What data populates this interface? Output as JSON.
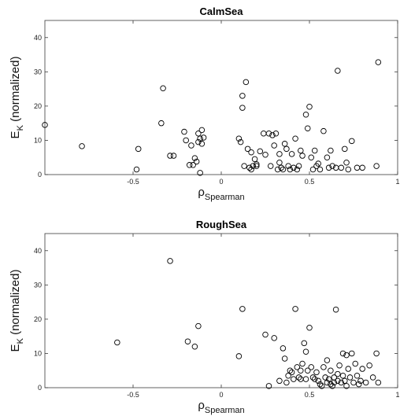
{
  "chart_data": [
    {
      "type": "scatter",
      "title": "CalmSea",
      "xlabel": {
        "main": "ρ",
        "sub": "Spearman"
      },
      "ylabel": {
        "main": "E",
        "sub": "K",
        "suffix": " (normalized)"
      },
      "xlim": [
        -1,
        1
      ],
      "ylim": [
        0,
        45
      ],
      "xticks": [
        -0.5,
        0,
        0.5,
        1
      ],
      "yticks": [
        0,
        10,
        20,
        30,
        40
      ],
      "xtick_labels": [
        "-0.5",
        "0",
        "0.5",
        "1"
      ],
      "ytick_labels": [
        "0",
        "10",
        "20",
        "30",
        "40"
      ],
      "grid": false,
      "marker": "open-circle",
      "x": [
        -1.0,
        -0.79,
        -0.48,
        -0.47,
        -0.34,
        -0.33,
        -0.29,
        -0.27,
        -0.21,
        -0.2,
        -0.18,
        -0.17,
        -0.16,
        -0.15,
        -0.14,
        -0.13,
        -0.13,
        -0.12,
        -0.12,
        -0.11,
        -0.11,
        -0.1,
        0.1,
        0.11,
        0.12,
        0.12,
        0.13,
        0.14,
        0.15,
        0.16,
        0.17,
        0.17,
        0.18,
        0.19,
        0.2,
        0.2,
        0.22,
        0.24,
        0.25,
        0.27,
        0.28,
        0.29,
        0.3,
        0.31,
        0.32,
        0.33,
        0.33,
        0.34,
        0.35,
        0.36,
        0.37,
        0.38,
        0.39,
        0.4,
        0.41,
        0.42,
        0.43,
        0.44,
        0.45,
        0.46,
        0.48,
        0.49,
        0.5,
        0.51,
        0.52,
        0.53,
        0.54,
        0.55,
        0.56,
        0.58,
        0.6,
        0.61,
        0.62,
        0.63,
        0.65,
        0.66,
        0.68,
        0.7,
        0.71,
        0.72,
        0.74,
        0.77,
        0.8,
        0.88,
        0.89
      ],
      "y": [
        14.5,
        8.3,
        1.5,
        7.5,
        15.0,
        25.2,
        5.5,
        5.5,
        12.5,
        10.0,
        2.8,
        8.5,
        2.8,
        4.8,
        3.8,
        12.0,
        9.5,
        10.5,
        0.5,
        13.0,
        9.0,
        10.8,
        10.5,
        9.5,
        23.0,
        19.5,
        2.5,
        27.0,
        7.5,
        2.0,
        1.5,
        6.5,
        2.5,
        4.5,
        3.0,
        2.5,
        6.8,
        12.0,
        5.8,
        12.0,
        2.5,
        11.5,
        8.5,
        12.0,
        1.5,
        6.0,
        3.5,
        2.0,
        1.5,
        9.0,
        7.5,
        2.5,
        1.5,
        6.0,
        2.0,
        10.5,
        1.5,
        2.5,
        7.0,
        5.5,
        17.5,
        13.5,
        19.8,
        5.0,
        1.5,
        7.0,
        2.5,
        3.2,
        1.5,
        12.7,
        5.0,
        2.0,
        7.0,
        2.5,
        2.0,
        30.3,
        2.0,
        7.5,
        3.5,
        1.5,
        9.8,
        2.0,
        2.0,
        2.5,
        32.8
      ]
    },
    {
      "type": "scatter",
      "title": "RoughSea",
      "xlabel": {
        "main": "ρ",
        "sub": "Spearman"
      },
      "ylabel": {
        "main": "E",
        "sub": "K",
        "suffix": " (normalized)"
      },
      "xlim": [
        -1,
        1
      ],
      "ylim": [
        0,
        45
      ],
      "xticks": [
        -0.5,
        0,
        0.5,
        1
      ],
      "yticks": [
        0,
        10,
        20,
        30,
        40
      ],
      "xtick_labels": [
        "-0.5",
        "0",
        "0.5",
        "1"
      ],
      "ytick_labels": [
        "0",
        "10",
        "20",
        "30",
        "40"
      ],
      "grid": false,
      "marker": "open-circle",
      "x": [
        -0.59,
        -0.29,
        -0.19,
        -0.15,
        -0.13,
        0.1,
        0.12,
        0.25,
        0.27,
        0.3,
        0.33,
        0.35,
        0.36,
        0.37,
        0.38,
        0.39,
        0.4,
        0.41,
        0.42,
        0.43,
        0.44,
        0.45,
        0.45,
        0.46,
        0.47,
        0.48,
        0.48,
        0.49,
        0.5,
        0.51,
        0.52,
        0.53,
        0.54,
        0.55,
        0.56,
        0.57,
        0.58,
        0.59,
        0.6,
        0.6,
        0.61,
        0.62,
        0.62,
        0.63,
        0.64,
        0.64,
        0.65,
        0.66,
        0.66,
        0.67,
        0.68,
        0.69,
        0.69,
        0.7,
        0.71,
        0.71,
        0.72,
        0.73,
        0.74,
        0.75,
        0.76,
        0.77,
        0.78,
        0.79,
        0.8,
        0.82,
        0.84,
        0.86,
        0.88,
        0.89
      ],
      "y": [
        13.2,
        37.0,
        13.5,
        12.0,
        18.0,
        9.2,
        23.0,
        15.5,
        0.5,
        14.5,
        2.0,
        11.5,
        8.5,
        1.5,
        3.5,
        5.0,
        4.5,
        2.5,
        23.0,
        6.0,
        3.0,
        2.5,
        5.0,
        7.0,
        13.0,
        10.5,
        2.5,
        5.0,
        17.5,
        6.0,
        3.0,
        2.5,
        4.5,
        2.0,
        1.0,
        0.5,
        6.0,
        3.0,
        1.5,
        8.0,
        2.5,
        1.0,
        5.0,
        0.5,
        3.0,
        1.5,
        22.8,
        4.0,
        2.0,
        6.5,
        1.5,
        3.5,
        10.0,
        2.0,
        9.5,
        0.5,
        5.5,
        3.0,
        10.0,
        1.5,
        7.0,
        3.5,
        1.0,
        2.0,
        5.5,
        1.5,
        6.5,
        3.0,
        10.0,
        1.5
      ]
    }
  ]
}
